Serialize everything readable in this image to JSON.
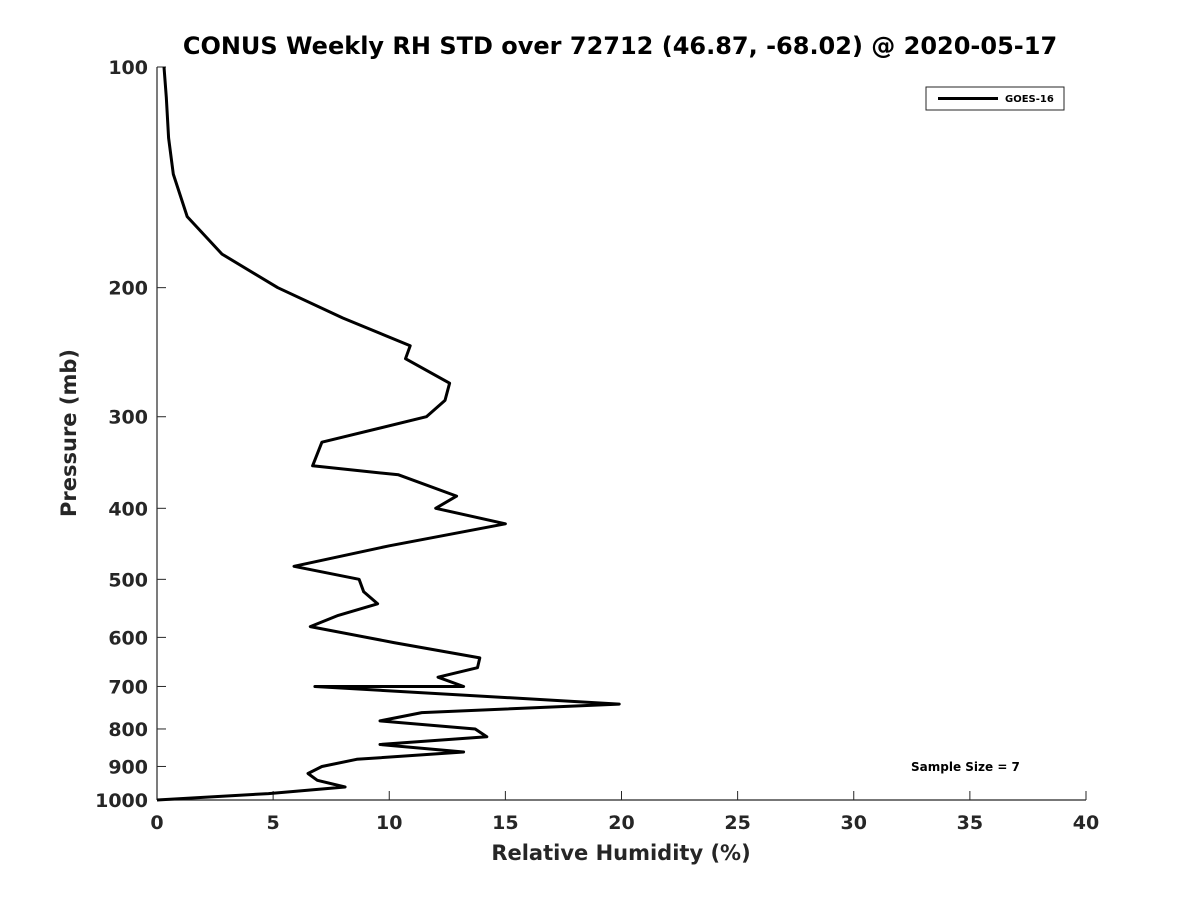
{
  "chart_data": {
    "type": "line",
    "title": "CONUS Weekly RH STD over 72712 (46.87, -68.02) @ 2020-05-17",
    "xlabel": "Relative Humidity (%)",
    "ylabel": "Pressure (mb)",
    "xlim": [
      0,
      40
    ],
    "ylim": [
      100,
      1000
    ],
    "y_scale": "log",
    "y_reversed": true,
    "x_ticks": [
      "0",
      "5",
      "10",
      "15",
      "20",
      "25",
      "30",
      "35",
      "40"
    ],
    "y_ticks": [
      "100",
      "200",
      "300",
      "400",
      "500",
      "600",
      "700",
      "800",
      "900",
      "1000"
    ],
    "grid": false,
    "legend_position": "top-right",
    "annotation": "Sample Size = 7",
    "line_color": "#000000",
    "series": [
      {
        "name": "GOES-16",
        "x": [
          0.3,
          0.4,
          0.5,
          0.7,
          1.3,
          2.8,
          5.2,
          8.0,
          10.9,
          10.7,
          12.6,
          12.4,
          11.6,
          7.1,
          6.7,
          10.4,
          12.9,
          12.0,
          15.0,
          10.0,
          5.9,
          8.7,
          8.9,
          9.5,
          7.8,
          6.6,
          10.2,
          13.9,
          13.8,
          12.1,
          13.2,
          6.8,
          19.9,
          11.4,
          9.6,
          13.7,
          14.2,
          9.6,
          13.2,
          8.6,
          7.1,
          6.5,
          6.9,
          8.1,
          4.8,
          0.0
        ],
        "y": [
          100,
          110,
          125,
          140,
          160,
          180,
          200,
          220,
          240,
          250,
          270,
          285,
          300,
          325,
          350,
          360,
          385,
          400,
          420,
          450,
          480,
          500,
          520,
          540,
          560,
          580,
          610,
          640,
          660,
          680,
          700,
          700,
          740,
          760,
          780,
          800,
          820,
          840,
          860,
          880,
          900,
          920,
          940,
          960,
          980,
          1000
        ]
      }
    ]
  }
}
